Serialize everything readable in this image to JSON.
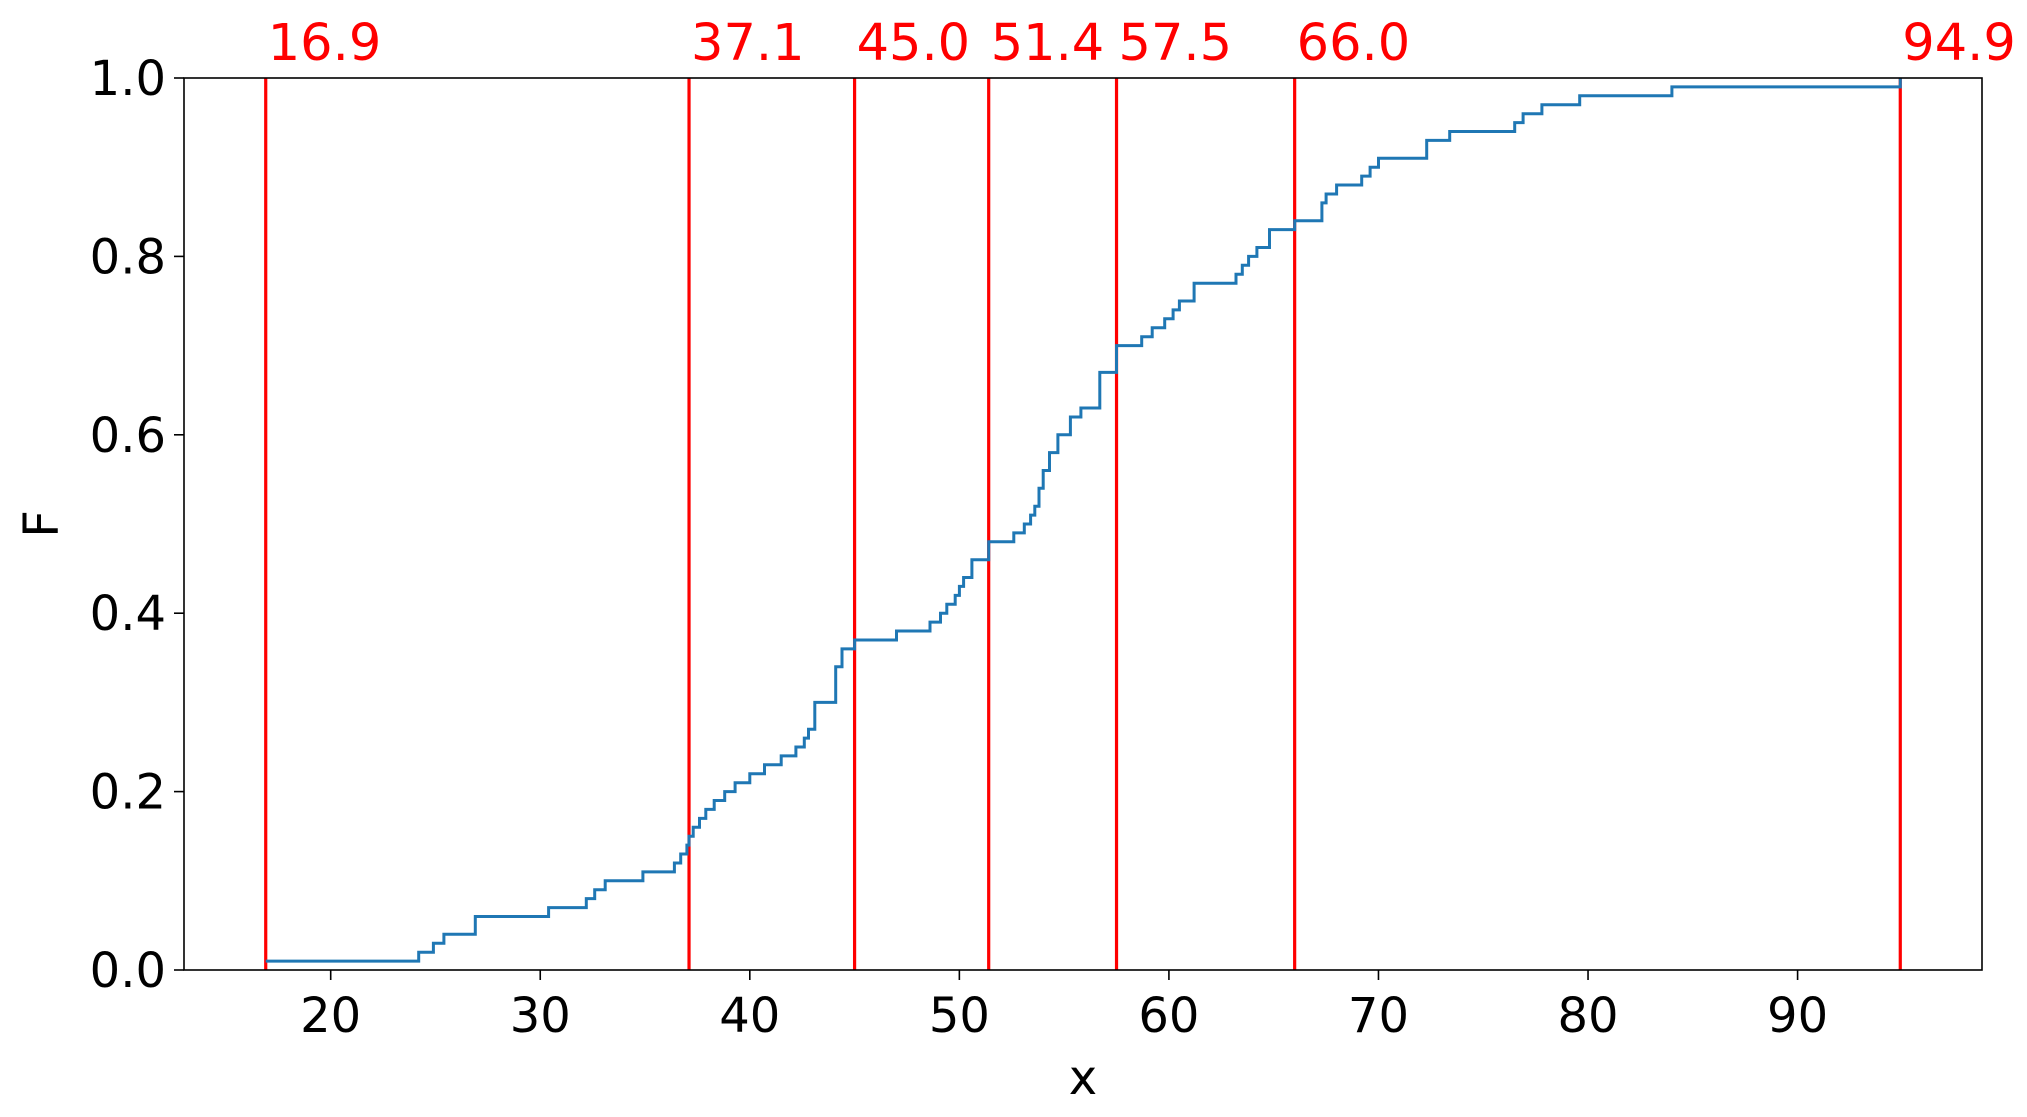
{
  "chart_data": {
    "type": "line",
    "step": "post",
    "xlabel": "x",
    "ylabel": "F",
    "xlim": [
      13.0,
      98.8
    ],
    "ylim": [
      0.0,
      1.0
    ],
    "xticks": [
      20,
      30,
      40,
      50,
      60,
      70,
      80,
      90
    ],
    "yticks": [
      0.0,
      0.2,
      0.4,
      0.6,
      0.8,
      1.0
    ],
    "xtick_labels": [
      "20",
      "30",
      "40",
      "50",
      "60",
      "70",
      "80",
      "90"
    ],
    "ytick_labels": [
      "0.0",
      "0.2",
      "0.4",
      "0.6",
      "0.8",
      "1.0"
    ],
    "grid": false,
    "series": [
      {
        "color": "#1f77b4",
        "x": [
          16.9,
          24.2,
          24.9,
          25.4,
          26.9,
          30.4,
          32.2,
          32.6,
          33.1,
          34.9,
          36.4,
          36.7,
          37.0,
          37.1,
          37.3,
          37.6,
          37.9,
          38.3,
          38.8,
          39.3,
          40.0,
          40.7,
          41.5,
          42.2,
          42.6,
          42.8,
          43.1,
          44.1,
          44.4,
          45.0,
          47.0,
          48.6,
          49.1,
          49.4,
          49.8,
          50.0,
          50.2,
          50.6,
          51.4,
          52.6,
          53.1,
          53.4,
          53.6,
          53.8,
          54.0,
          54.3,
          54.7,
          55.3,
          55.8,
          56.7,
          57.5,
          58.7,
          59.2,
          59.8,
          60.2,
          60.5,
          61.2,
          63.2,
          63.5,
          63.8,
          64.2,
          64.8,
          66.0,
          67.3,
          67.5,
          68.0,
          69.2,
          69.6,
          70.0,
          72.3,
          73.4,
          76.5,
          76.9,
          77.8,
          79.6,
          84.0,
          94.9
        ],
        "y": [
          0.01,
          0.02,
          0.03,
          0.04,
          0.06,
          0.07,
          0.08,
          0.09,
          0.1,
          0.11,
          0.12,
          0.13,
          0.14,
          0.15,
          0.16,
          0.17,
          0.18,
          0.19,
          0.2,
          0.21,
          0.22,
          0.23,
          0.24,
          0.25,
          0.26,
          0.27,
          0.3,
          0.34,
          0.36,
          0.37,
          0.38,
          0.39,
          0.4,
          0.41,
          0.42,
          0.43,
          0.44,
          0.46,
          0.48,
          0.49,
          0.5,
          0.51,
          0.52,
          0.54,
          0.56,
          0.58,
          0.6,
          0.62,
          0.63,
          0.67,
          0.7,
          0.71,
          0.72,
          0.73,
          0.74,
          0.75,
          0.77,
          0.78,
          0.79,
          0.8,
          0.81,
          0.83,
          0.84,
          0.86,
          0.87,
          0.88,
          0.89,
          0.9,
          0.91,
          0.93,
          0.94,
          0.95,
          0.96,
          0.97,
          0.98,
          0.99,
          1.0
        ]
      }
    ],
    "markers": {
      "color": "#ff0000",
      "values": [
        16.9,
        37.1,
        45.0,
        51.4,
        57.5,
        66.0,
        94.9
      ],
      "labels": [
        "16.9",
        "37.1",
        "45.0",
        "51.4",
        "57.5",
        "66.0",
        "94.9"
      ]
    }
  }
}
